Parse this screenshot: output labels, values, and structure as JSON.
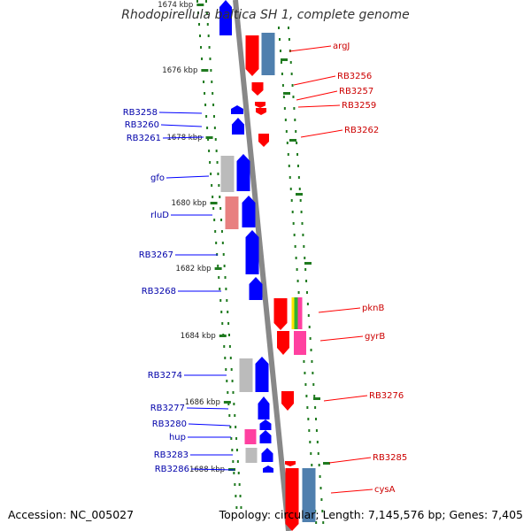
{
  "title": "Rhodopirellula baltica SH 1, complete genome",
  "footer": {
    "accession": "Accession: NC_005027",
    "summary": "Topology: circular; Length: 7,145,576 bp; Genes: 7,405"
  },
  "colors": {
    "forward_gene": "#0000ff",
    "reverse_gene": "#ff0000",
    "forward_label": "#0000aa",
    "reverse_label": "#cc0000",
    "tick": "#1f7a1f",
    "backbone": "#888888",
    "pseudo": "#bbbbbb",
    "rna": "#4f7fae"
  },
  "ticks": [
    "1674 kbp",
    "1676 kbp",
    "1678 kbp",
    "1680 kbp",
    "1682 kbp",
    "1684 kbp",
    "1686 kbp",
    "1688 kbp"
  ],
  "left_labels": [
    "RB3258",
    "RB3260",
    "RB3261",
    "gfo",
    "rluD",
    "RB3267",
    "RB3268",
    "RB3274",
    "RB3277",
    "RB3280",
    "hup",
    "RB3283",
    "RB3286"
  ],
  "right_labels": [
    "argJ",
    "RB3256",
    "RB3257",
    "RB3259",
    "RB3262",
    "pknB",
    "gyrB",
    "RB3276",
    "RB3285",
    "cysA"
  ]
}
